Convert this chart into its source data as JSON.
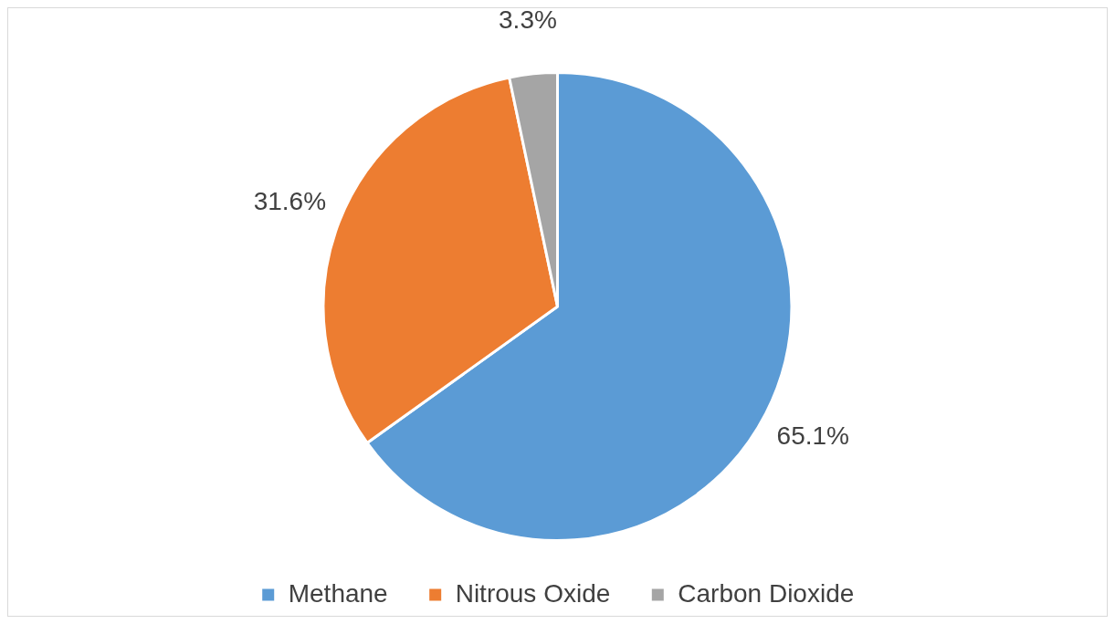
{
  "chart_data": {
    "type": "pie",
    "categories": [
      "Methane",
      "Nitrous Oxide",
      "Carbon Dioxide"
    ],
    "values": [
      65.1,
      31.6,
      3.3
    ],
    "colors": [
      "#5b9bd5",
      "#ed7d31",
      "#a5a5a5"
    ],
    "value_labels": [
      "65.1%",
      "31.6%",
      "3.3%"
    ],
    "legend": "bottom"
  }
}
